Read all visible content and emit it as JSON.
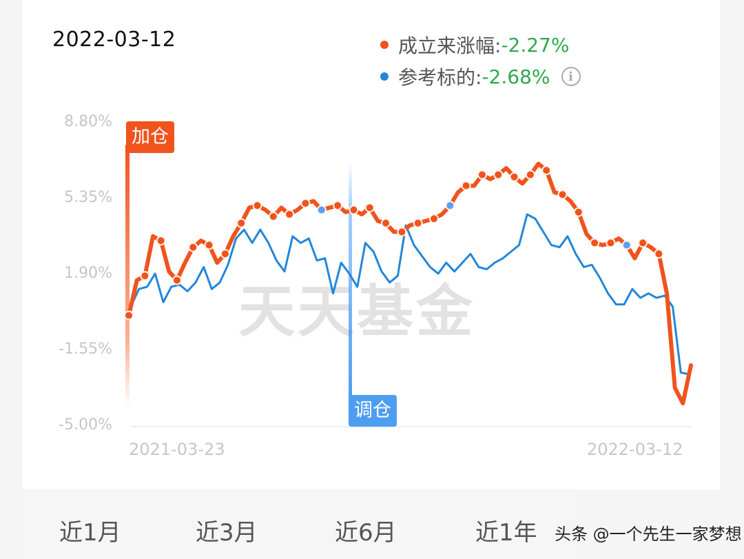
{
  "header": {
    "date": "2022-03-12"
  },
  "legend": [
    {
      "label": "成立来涨幅:",
      "value": "-2.27%",
      "color": "#f0531c"
    },
    {
      "label": "参考标的:",
      "value": "-2.68%",
      "color": "#2286d8",
      "info_icon": "info-icon"
    }
  ],
  "markers": {
    "add_position": {
      "label": "加仓",
      "color": "#f0531c"
    },
    "adjust_position": {
      "label": "调仓",
      "color": "#4d9ef0"
    }
  },
  "watermark": "天天基金",
  "tabs": [
    {
      "label": "近1月"
    },
    {
      "label": "近3月"
    },
    {
      "label": "近6月"
    },
    {
      "label": "近1年"
    }
  ],
  "credit": "头条 @一个先生一家梦想",
  "chart_data": {
    "type": "line",
    "title": "",
    "xlabel": "",
    "ylabel": "",
    "y_ticks": [
      "8.80%",
      "5.35%",
      "1.90%",
      "-1.55%",
      "-5.00%"
    ],
    "ylim": [
      -5.0,
      8.8
    ],
    "x_ticks": [
      "2021-03-23",
      "2022-03-12"
    ],
    "grid": false,
    "legend_position": "top-right",
    "series": [
      {
        "name": "成立来涨幅",
        "color": "#f0531c",
        "values": [
          0.0,
          1.6,
          1.8,
          3.6,
          3.4,
          2.0,
          1.6,
          2.4,
          3.1,
          3.4,
          3.2,
          2.4,
          2.8,
          3.6,
          4.2,
          4.9,
          5.0,
          4.8,
          4.5,
          4.9,
          4.6,
          4.8,
          5.1,
          5.2,
          4.8,
          4.9,
          5.0,
          4.7,
          4.8,
          4.6,
          4.9,
          4.3,
          4.2,
          3.8,
          3.8,
          4.1,
          4.2,
          4.3,
          4.4,
          4.6,
          5.0,
          5.6,
          5.9,
          5.9,
          6.4,
          6.2,
          6.4,
          6.7,
          6.3,
          6.0,
          6.4,
          6.9,
          6.6,
          5.6,
          5.5,
          5.2,
          4.7,
          3.7,
          3.3,
          3.2,
          3.3,
          3.5,
          3.2,
          2.6,
          3.3,
          3.1,
          2.8,
          1.0,
          -3.3,
          -4.0,
          -2.27
        ]
      },
      {
        "name": "参考标的",
        "color": "#2286d8",
        "values": [
          0.4,
          1.2,
          1.3,
          1.9,
          0.6,
          1.3,
          1.4,
          1.1,
          1.5,
          2.2,
          1.2,
          1.5,
          2.3,
          3.5,
          3.9,
          3.3,
          3.9,
          3.3,
          2.5,
          2.0,
          3.6,
          3.3,
          3.5,
          2.5,
          2.6,
          1.0,
          2.4,
          1.9,
          1.3,
          3.3,
          2.9,
          2.0,
          1.5,
          1.8,
          4.1,
          3.2,
          2.7,
          2.2,
          1.9,
          2.4,
          2.0,
          2.4,
          2.8,
          2.2,
          2.1,
          2.4,
          2.6,
          2.9,
          3.2,
          4.6,
          4.4,
          3.8,
          3.2,
          3.1,
          3.6,
          2.8,
          2.2,
          2.3,
          1.7,
          1.0,
          0.5,
          0.5,
          1.2,
          0.8,
          1.0,
          0.8,
          0.9,
          0.4,
          -2.6,
          -2.68
        ]
      }
    ],
    "annotations": [
      {
        "label": "加仓",
        "x": "2021-03-23",
        "color": "#f0531c"
      },
      {
        "label": "调仓",
        "x_fraction": 0.395,
        "color": "#4d9ef0"
      }
    ]
  }
}
